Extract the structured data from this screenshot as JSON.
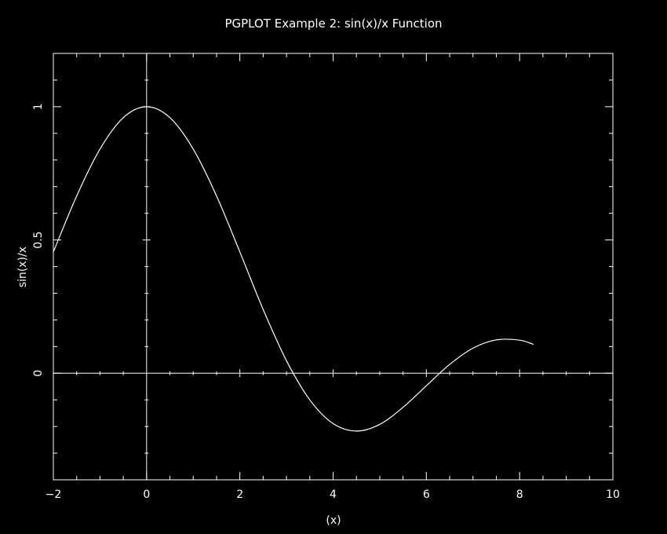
{
  "chart_data": {
    "type": "line",
    "title": "PGPLOT Example 2:  sin(x)/x Function",
    "xlabel": "(x)",
    "ylabel": "sin(x)/x",
    "xlim": [
      -2,
      10
    ],
    "ylim": [
      -0.4,
      1.2
    ],
    "x_ticks": [
      -2,
      0,
      2,
      4,
      6,
      8,
      10
    ],
    "x_tick_labels": [
      "−2",
      "0",
      "2",
      "4",
      "6",
      "8",
      "10"
    ],
    "y_ticks": [
      0,
      0.5,
      1
    ],
    "y_tick_labels": [
      "0",
      "0.5",
      "1"
    ],
    "grid": false,
    "zero_axes": true,
    "colors": {
      "background": "#000000",
      "foreground": "#ffffff",
      "series": "#ffffff"
    },
    "series": [
      {
        "x": [
          -2.0,
          -1.5,
          -1.0,
          -0.5,
          0.0,
          0.5,
          1.0,
          1.5,
          2.0,
          2.5,
          3.0,
          3.5,
          4.0,
          4.5,
          5.0,
          5.5,
          6.0,
          6.5,
          7.0,
          7.5,
          8.0,
          8.3
        ],
        "y": [
          0.455,
          0.665,
          0.841,
          0.959,
          1.0,
          0.959,
          0.841,
          0.665,
          0.455,
          0.239,
          0.047,
          -0.1,
          -0.189,
          -0.217,
          -0.192,
          -0.128,
          -0.047,
          0.033,
          0.094,
          0.125,
          0.124,
          0.108
        ]
      }
    ]
  }
}
